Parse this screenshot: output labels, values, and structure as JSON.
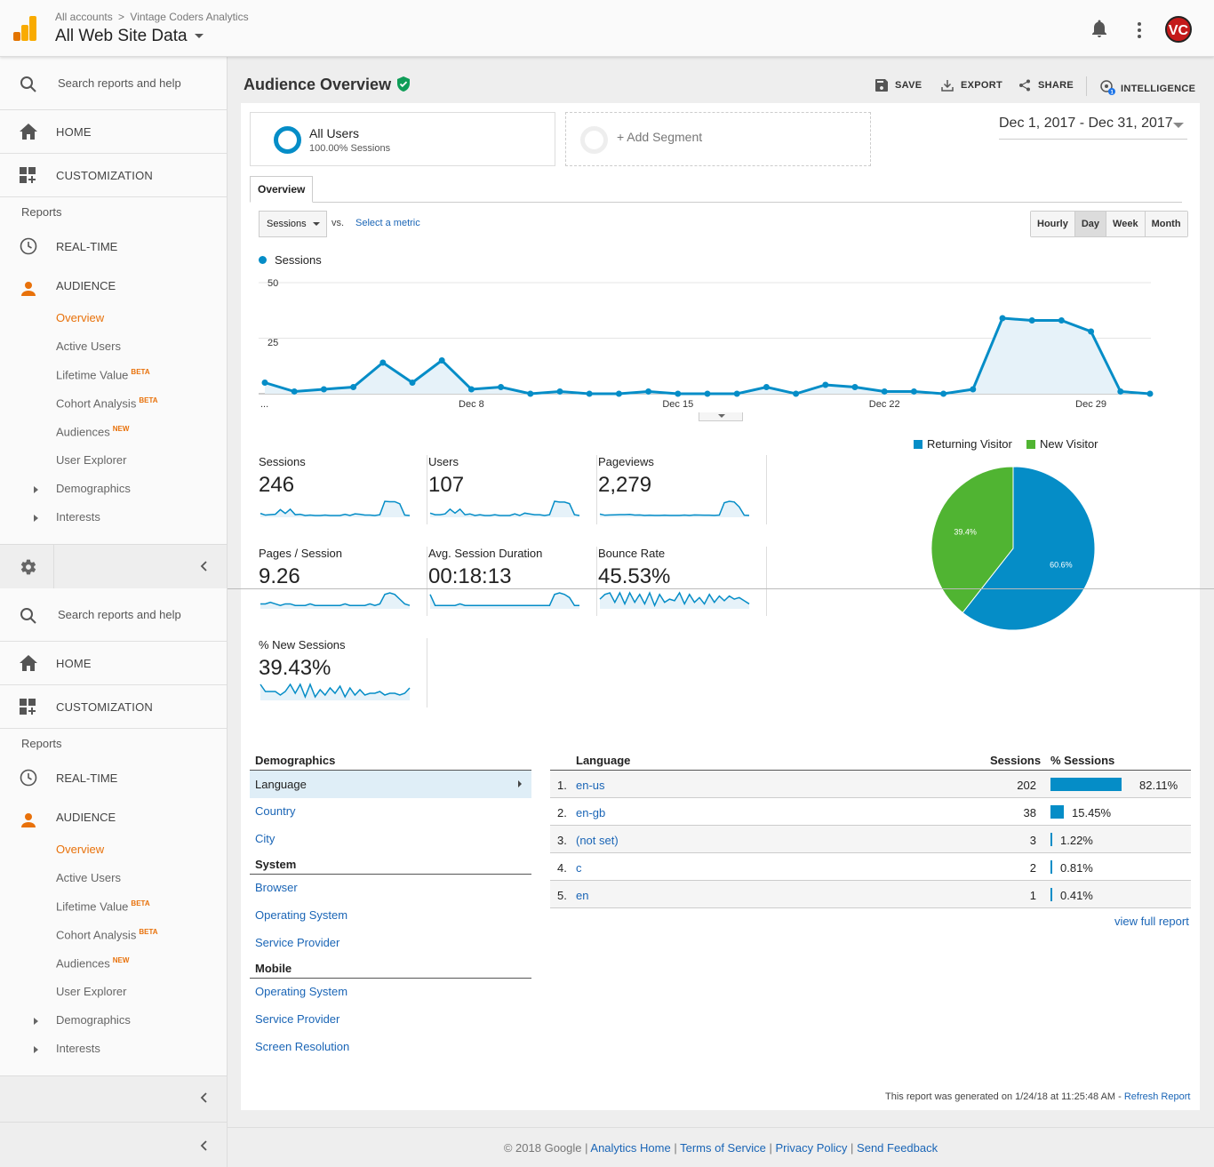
{
  "topbar": {
    "breadcrumb": [
      "All accounts",
      "Vintage Coders Analytics"
    ],
    "breadcrumb_sep": ">",
    "property": "All Web Site Data",
    "avatar_initials": "VC",
    "icons": [
      "analytics-logo-icon",
      "bell-icon",
      "kebab-menu-icon",
      "avatar"
    ]
  },
  "sidebar": {
    "search_placeholder": "Search reports and help",
    "home": "HOME",
    "customization": "CUSTOMIZATION",
    "reports_label": "Reports",
    "realtime": "REAL-TIME",
    "audience": "AUDIENCE",
    "sub": [
      {
        "label": "Overview",
        "badge": "",
        "active": true
      },
      {
        "label": "Active Users",
        "badge": ""
      },
      {
        "label": "Lifetime Value",
        "badge": "BETA"
      },
      {
        "label": "Cohort Analysis",
        "badge": "BETA"
      },
      {
        "label": "Audiences",
        "badge": "NEW"
      },
      {
        "label": "User Explorer",
        "badge": ""
      },
      {
        "label": "Demographics",
        "badge": "",
        "expandable": true
      },
      {
        "label": "Interests",
        "badge": "",
        "expandable": true
      }
    ],
    "colors": {
      "accent": "#e8710a"
    }
  },
  "page": {
    "title": "Audience Overview",
    "toolbar": {
      "save": "SAVE",
      "export": "EXPORT",
      "share": "SHARE",
      "intelligence": "INTELLIGENCE",
      "intelligence_badge": "1"
    },
    "segments": {
      "all_users": "All Users",
      "all_users_sub": "100.00% Sessions",
      "add": "+ Add Segment"
    },
    "date_range": "Dec 1, 2017 - Dec 31, 2017",
    "tab": "Overview",
    "metric_select": "Sessions",
    "vs": "vs.",
    "select_metric": "Select a metric",
    "granularity": [
      {
        "label": "Hourly",
        "selected": false
      },
      {
        "label": "Day",
        "selected": true
      },
      {
        "label": "Week",
        "selected": false
      },
      {
        "label": "Month",
        "selected": false
      }
    ]
  },
  "chart_data": [
    {
      "type": "area",
      "series": [
        {
          "name": "Sessions",
          "values": [
            5,
            1,
            2,
            3,
            14,
            5,
            15,
            2,
            3,
            0,
            1,
            0,
            0,
            1,
            0,
            0,
            0,
            3,
            0,
            4,
            3,
            1,
            1,
            0,
            2,
            34,
            33,
            33,
            28,
            1,
            0
          ]
        }
      ],
      "x": [
        "Dec 1",
        "Dec 2",
        "Dec 3",
        "Dec 4",
        "Dec 5",
        "Dec 6",
        "Dec 7",
        "Dec 8",
        "Dec 9",
        "Dec 10",
        "Dec 11",
        "Dec 12",
        "Dec 13",
        "Dec 14",
        "Dec 15",
        "Dec 16",
        "Dec 17",
        "Dec 18",
        "Dec 19",
        "Dec 20",
        "Dec 21",
        "Dec 22",
        "Dec 23",
        "Dec 24",
        "Dec 25",
        "Dec 26",
        "Dec 27",
        "Dec 28",
        "Dec 29",
        "Dec 30",
        "Dec 31"
      ],
      "xticks": [
        "...",
        "Dec 8",
        "Dec 15",
        "Dec 22",
        "Dec 29"
      ],
      "yticks": [
        "50",
        "25"
      ],
      "ylim": [
        0,
        50
      ],
      "color": "#058dc7"
    },
    {
      "type": "pie",
      "categories": [
        "Returning Visitor",
        "New Visitor"
      ],
      "values": [
        60.6,
        39.4
      ],
      "labels": [
        "60.6%",
        "39.4%"
      ],
      "colors": [
        "#058dc7",
        "#50b432"
      ]
    }
  ],
  "metrics": [
    {
      "label": "Sessions",
      "value": "246",
      "spark": [
        5,
        1,
        2,
        3,
        14,
        5,
        15,
        2,
        3,
        0,
        1,
        0,
        0,
        1,
        0,
        0,
        0,
        3,
        0,
        4,
        3,
        1,
        1,
        0,
        2,
        34,
        33,
        33,
        28,
        1,
        0
      ]
    },
    {
      "label": "Users",
      "value": "107",
      "spark": [
        3,
        1,
        1,
        2,
        8,
        3,
        8,
        1,
        2,
        0,
        1,
        0,
        0,
        1,
        0,
        0,
        0,
        2,
        0,
        3,
        2,
        1,
        1,
        0,
        1,
        18,
        17,
        17,
        15,
        1,
        0
      ]
    },
    {
      "label": "Pageviews",
      "value": "2,279",
      "spark": [
        10,
        2,
        4,
        5,
        6,
        6,
        8,
        3,
        4,
        1,
        2,
        1,
        1,
        2,
        1,
        1,
        1,
        3,
        1,
        4,
        3,
        2,
        2,
        1,
        3,
        90,
        100,
        95,
        60,
        2,
        1
      ]
    },
    {
      "label": "Pages / Session",
      "value": "9.26",
      "spark": [
        2,
        2,
        3,
        2,
        1,
        2,
        2,
        1,
        1,
        1,
        2,
        1,
        1,
        1,
        1,
        1,
        1,
        2,
        1,
        1,
        1,
        1,
        2,
        1,
        2,
        8,
        9,
        8,
        5,
        2,
        1
      ]
    },
    {
      "label": "Avg. Session Duration",
      "value": "00:18:13",
      "spark": [
        8,
        1,
        1,
        1,
        1,
        1,
        2,
        1,
        1,
        1,
        1,
        1,
        1,
        1,
        1,
        1,
        1,
        1,
        1,
        1,
        1,
        1,
        1,
        1,
        1,
        8,
        9,
        8,
        6,
        1,
        1
      ]
    },
    {
      "label": "Bounce Rate",
      "value": "45.53%",
      "spark": [
        5,
        8,
        9,
        3,
        9,
        2,
        9,
        3,
        8,
        2,
        9,
        1,
        8,
        3,
        5,
        4,
        9,
        2,
        8,
        3,
        6,
        2,
        8,
        3,
        7,
        4,
        7,
        5,
        6,
        4,
        2
      ]
    },
    {
      "label": "% New Sessions",
      "value": "39.43%",
      "spark": [
        8,
        4,
        4,
        4,
        2,
        4,
        8,
        3,
        8,
        1,
        8,
        1,
        5,
        2,
        6,
        3,
        7,
        1,
        6,
        2,
        5,
        2,
        3,
        3,
        4,
        2,
        3,
        3,
        2,
        3,
        6
      ]
    }
  ],
  "demographics": {
    "sections": [
      {
        "title": "Demographics",
        "items": [
          "Language",
          "Country",
          "City"
        ]
      },
      {
        "title": "System",
        "items": [
          "Browser",
          "Operating System",
          "Service Provider"
        ]
      },
      {
        "title": "Mobile",
        "items": [
          "Operating System",
          "Service Provider",
          "Screen Resolution"
        ]
      }
    ]
  },
  "language_table": {
    "headers": [
      "Language",
      "Sessions",
      "% Sessions"
    ],
    "rows": [
      {
        "idx": "1.",
        "lang": "en-us",
        "sessions": "202",
        "pct": "82.11%",
        "frac": 0.8211
      },
      {
        "idx": "2.",
        "lang": "en-gb",
        "sessions": "38",
        "pct": "15.45%",
        "frac": 0.1545
      },
      {
        "idx": "3.",
        "lang": "(not set)",
        "sessions": "3",
        "pct": "1.22%",
        "frac": 0.0122
      },
      {
        "idx": "4.",
        "lang": "c",
        "sessions": "2",
        "pct": "0.81%",
        "frac": 0.0081
      },
      {
        "idx": "5.",
        "lang": "en",
        "sessions": "1",
        "pct": "0.41%",
        "frac": 0.0041
      }
    ],
    "view_full": "view full report"
  },
  "generated": {
    "text": "This report was generated on 1/24/18 at 11:25:48 AM - ",
    "refresh": "Refresh Report"
  },
  "footer": {
    "copyright": "© 2018 Google",
    "links": [
      "Analytics Home",
      "Terms of Service",
      "Privacy Policy",
      "Send Feedback"
    ]
  }
}
